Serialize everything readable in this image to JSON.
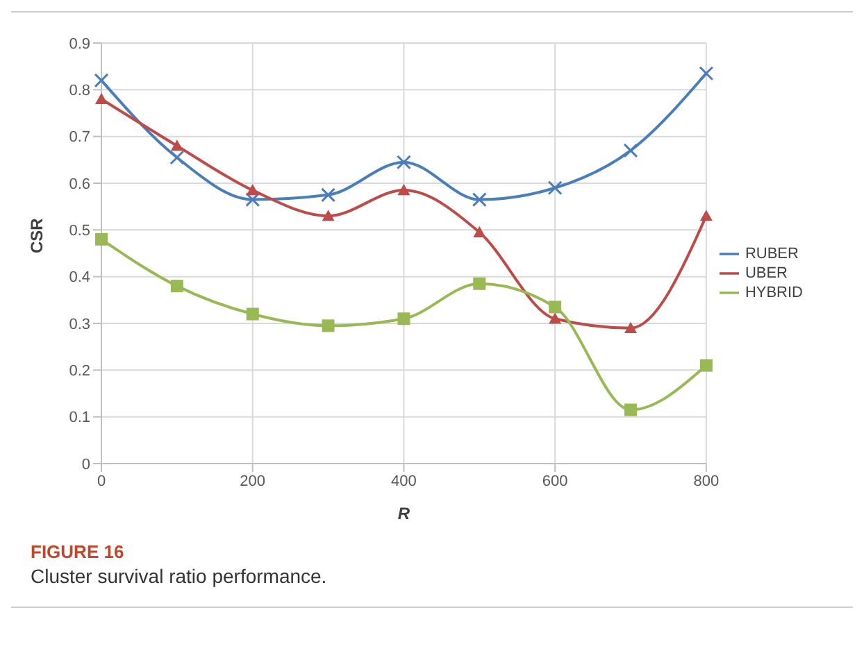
{
  "chart_data": {
    "type": "line",
    "title": "FIGURE 16",
    "subtitle": "Cluster survival ratio performance.",
    "xlabel": "R",
    "ylabel": "CSR",
    "x": [
      0,
      100,
      200,
      300,
      400,
      500,
      600,
      700,
      800
    ],
    "series": [
      {
        "name": "RUBER",
        "color": "#4a7ebb",
        "marker": "cross",
        "values": [
          0.82,
          0.655,
          0.565,
          0.575,
          0.645,
          0.565,
          0.59,
          0.67,
          0.835
        ]
      },
      {
        "name": "UBER",
        "color": "#be4b48",
        "marker": "triangle",
        "values": [
          0.78,
          0.68,
          0.585,
          0.53,
          0.585,
          0.495,
          0.31,
          0.29,
          0.53
        ]
      },
      {
        "name": "HYBRID",
        "color": "#98b954",
        "marker": "square",
        "values": [
          0.48,
          0.38,
          0.32,
          0.295,
          0.31,
          0.385,
          0.335,
          0.115,
          0.21
        ]
      }
    ],
    "xlim": [
      0,
      800
    ],
    "xticks": [
      0,
      200,
      400,
      600,
      800
    ],
    "ylim": [
      0,
      0.9
    ],
    "yticks": [
      0,
      0.1,
      0.2,
      0.3,
      0.4,
      0.5,
      0.6,
      0.7,
      0.8,
      0.9
    ],
    "grid": true,
    "legend": "right",
    "line_style": "solid"
  }
}
